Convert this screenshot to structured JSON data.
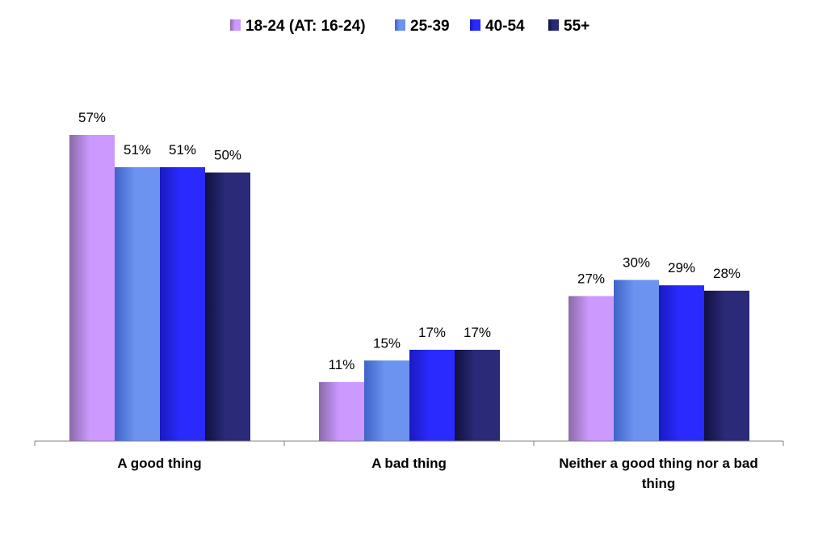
{
  "chart_data": {
    "type": "bar",
    "categories": [
      "A good thing",
      "A bad thing",
      "Neither a good thing nor a bad thing"
    ],
    "category_lines": [
      [
        "A good thing"
      ],
      [
        "A bad thing"
      ],
      [
        "Neither a good thing nor a bad",
        "thing"
      ]
    ],
    "series": [
      {
        "name": "18-24 (AT: 16-24)",
        "values": [
          57,
          11,
          27
        ],
        "labels": [
          "57%",
          "11%",
          "27%"
        ],
        "color": "#cc99ff",
        "shade": "#8a6aa8"
      },
      {
        "name": "25-39",
        "values": [
          51,
          15,
          30
        ],
        "labels": [
          "51%",
          "15%",
          "30%"
        ],
        "color": "#6b93ef",
        "shade": "#3f63c9"
      },
      {
        "name": "40-54",
        "values": [
          51,
          17,
          29
        ],
        "labels": [
          "51%",
          "17%",
          "29%"
        ],
        "color": "#2a2aff",
        "shade": "#1a1ac0"
      },
      {
        "name": "55+",
        "values": [
          50,
          17,
          28
        ],
        "labels": [
          "50%",
          "17%",
          "28%"
        ],
        "color": "#2a2a78",
        "shade": "#101040"
      }
    ],
    "ylim": [
      0,
      70
    ],
    "legend": "top",
    "grid": false
  }
}
